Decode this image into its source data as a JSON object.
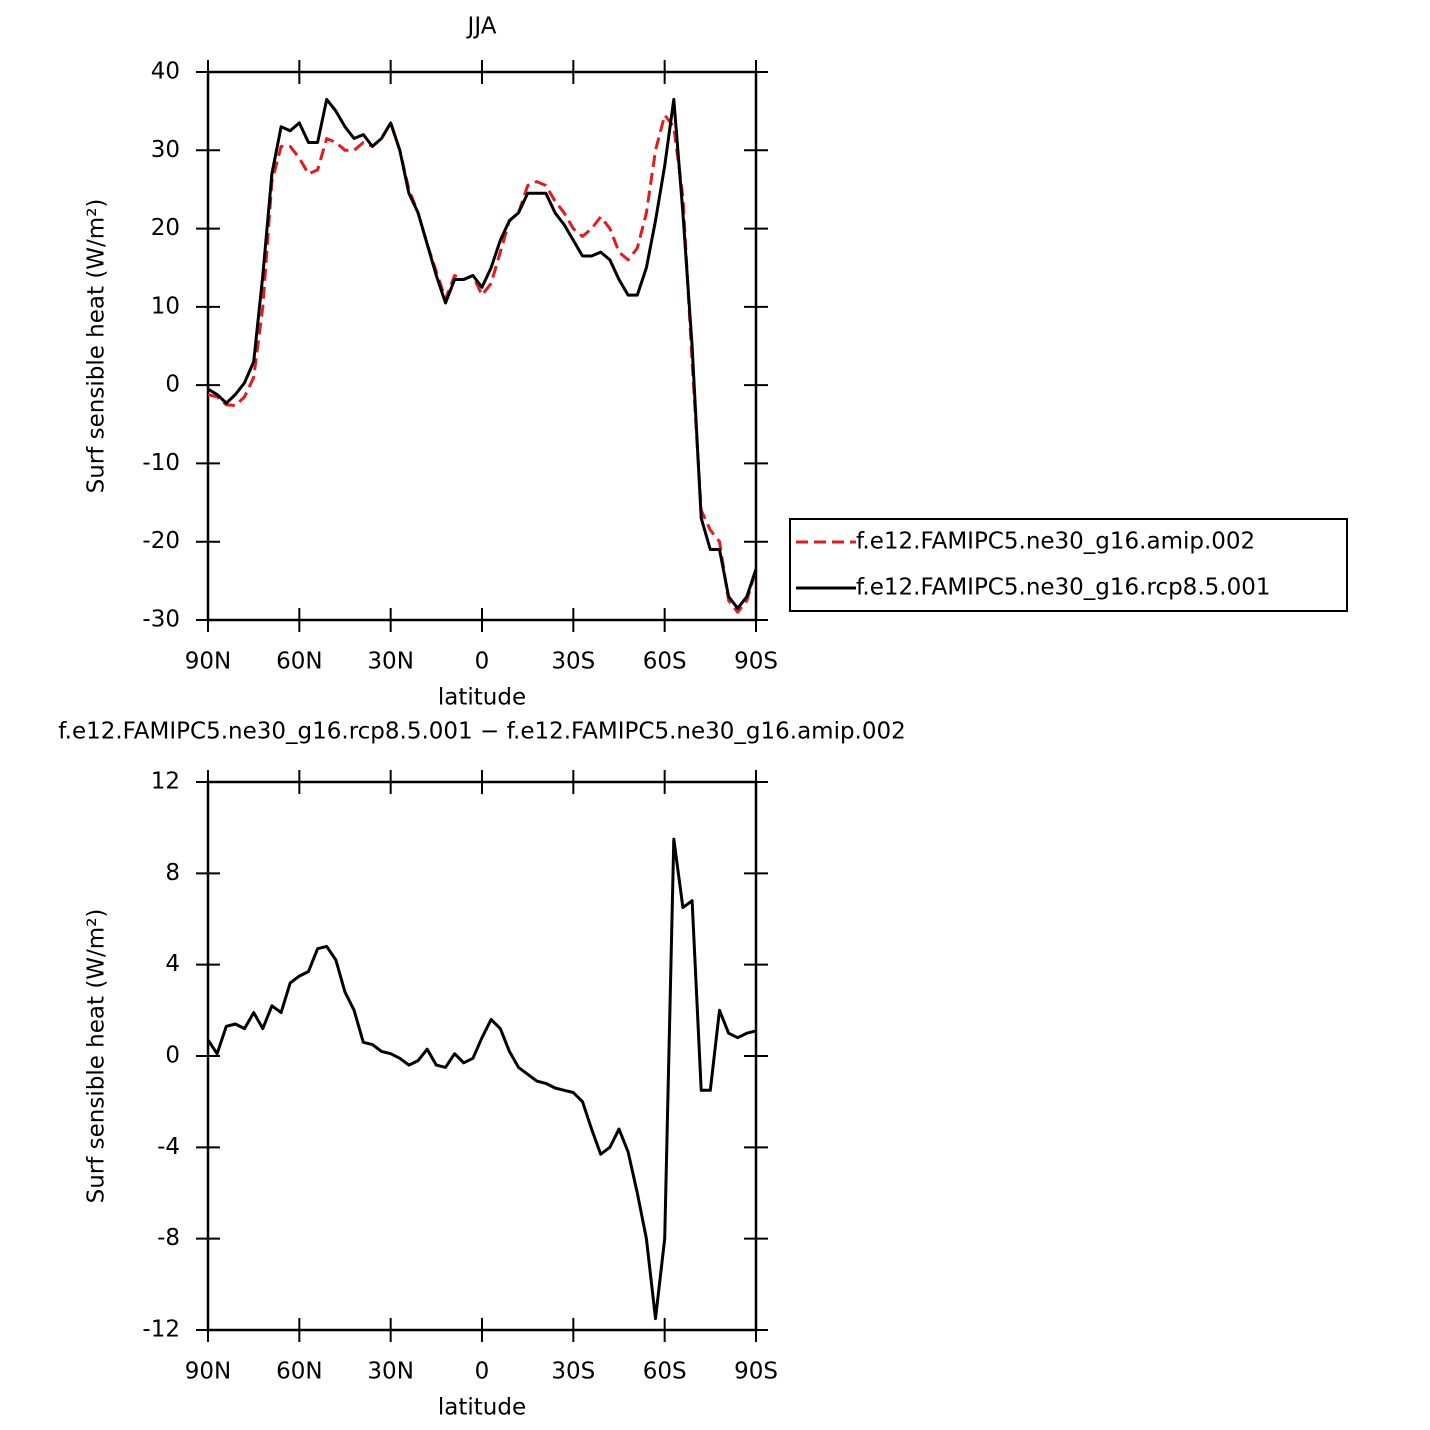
{
  "chart_data": [
    {
      "type": "line",
      "title": "JJA",
      "xlabel": "latitude",
      "ylabel": "Surf sensible heat (W/m²)",
      "x": [
        90,
        87,
        84,
        81,
        78,
        75,
        72,
        69,
        66,
        63,
        60,
        57,
        54,
        51,
        48,
        45,
        42,
        39,
        36,
        33,
        30,
        27,
        24,
        21,
        18,
        15,
        12,
        9,
        6,
        3,
        0,
        -3,
        -6,
        -9,
        -12,
        -15,
        -18,
        -21,
        -24,
        -27,
        -30,
        -33,
        -36,
        -39,
        -42,
        -45,
        -48,
        -51,
        -54,
        -57,
        -60,
        -63,
        -66,
        -69,
        -72,
        -75,
        -78,
        -81,
        -84,
        -87,
        -90
      ],
      "xlim": [
        90,
        -90
      ],
      "xticks": [
        {
          "value": 90,
          "label": "90N"
        },
        {
          "value": 60,
          "label": "60N"
        },
        {
          "value": 30,
          "label": "30N"
        },
        0,
        {
          "value": -30,
          "label": "30S"
        },
        {
          "value": -60,
          "label": "60S"
        },
        {
          "value": -90,
          "label": "90S"
        }
      ],
      "ylim": [
        -30,
        40
      ],
      "yticks": [
        -30,
        -20,
        -10,
        0,
        10,
        20,
        30,
        40
      ],
      "legend": "right",
      "series": [
        {
          "name": "f.e12.FAMIPC5.ne30_g16.amip.002",
          "color": "#e41a1c",
          "dash": true,
          "values": [
            -1.2,
            -1.5,
            -2.5,
            -2.6,
            -1.5,
            1.0,
            10,
            26,
            30.5,
            30.5,
            29,
            27,
            27.5,
            31.5,
            31,
            30,
            30,
            31,
            30.5,
            31.5,
            33.5,
            30,
            25,
            22,
            18,
            14.5,
            11,
            14,
            13.5,
            14,
            11.5,
            13,
            17,
            21,
            22,
            25.5,
            26,
            25.5,
            23.5,
            22,
            20,
            19,
            20,
            21.5,
            20,
            17,
            16,
            17.5,
            22,
            30,
            34.5,
            33,
            24,
            3,
            -16,
            -18.5,
            -20,
            -27.5,
            -29,
            -27.5,
            -23.5
          ]
        },
        {
          "name": "f.e12.FAMIPC5.ne30_g16.rcp8.5.001",
          "color": "#000000",
          "dash": false,
          "values": [
            -0.5,
            -1.2,
            -2.3,
            -1.2,
            0.3,
            3.0,
            14,
            27,
            33,
            32.5,
            33.5,
            31,
            31,
            36.5,
            35,
            33,
            31.5,
            32,
            30.5,
            31.5,
            33.5,
            30,
            24.5,
            22,
            18,
            14,
            10.5,
            13.5,
            13.5,
            14,
            12.5,
            15,
            18.5,
            21,
            22,
            24.5,
            24.5,
            24.5,
            22,
            20.5,
            18.5,
            16.5,
            16.5,
            17,
            16,
            13.5,
            11.5,
            11.5,
            15,
            21,
            28,
            36.5,
            22,
            5,
            -17,
            -21,
            -21,
            -27,
            -28.5,
            -27,
            -23.5
          ]
        }
      ]
    },
    {
      "type": "line",
      "title": "f.e12.FAMIPC5.ne30_g16.rcp8.5.001 − f.e12.FAMIPC5.ne30_g16.amip.002",
      "xlabel": "latitude",
      "ylabel": "Surf sensible heat (W/m²)",
      "x": [
        90,
        87,
        84,
        81,
        78,
        75,
        72,
        69,
        66,
        63,
        60,
        57,
        54,
        51,
        48,
        45,
        42,
        39,
        36,
        33,
        30,
        27,
        24,
        21,
        18,
        15,
        12,
        9,
        6,
        3,
        0,
        -3,
        -6,
        -9,
        -12,
        -15,
        -18,
        -21,
        -24,
        -27,
        -30,
        -33,
        -36,
        -39,
        -42,
        -45,
        -48,
        -51,
        -54,
        -57,
        -60,
        -63,
        -66,
        -69,
        -72,
        -75,
        -78,
        -81,
        -84,
        -87,
        -90
      ],
      "xlim": [
        90,
        -90
      ],
      "xticks": [
        {
          "value": 90,
          "label": "90N"
        },
        {
          "value": 60,
          "label": "60N"
        },
        {
          "value": 30,
          "label": "30N"
        },
        0,
        {
          "value": -30,
          "label": "30S"
        },
        {
          "value": -60,
          "label": "60S"
        },
        {
          "value": -90,
          "label": "90S"
        }
      ],
      "ylim": [
        -12,
        12
      ],
      "yticks": [
        -12,
        -8,
        -4,
        0,
        4,
        8,
        12
      ],
      "series": [
        {
          "color": "#000000",
          "dash": false,
          "values": [
            0.7,
            0.1,
            1.3,
            1.4,
            1.2,
            1.9,
            1.2,
            2.2,
            1.9,
            3.2,
            3.5,
            3.7,
            4.7,
            4.8,
            4.2,
            2.8,
            2.0,
            0.6,
            0.5,
            0.2,
            0.1,
            -0.1,
            -0.4,
            -0.2,
            0.3,
            -0.4,
            -0.5,
            0.1,
            -0.3,
            -0.1,
            0.8,
            1.6,
            1.2,
            0.2,
            -0.5,
            -0.8,
            -1.1,
            -1.2,
            -1.4,
            -1.5,
            -1.6,
            -2.0,
            -3.2,
            -4.3,
            -4.0,
            -3.2,
            -4.2,
            -6.0,
            -8.0,
            -11.5,
            -8.0,
            9.5,
            6.5,
            6.8,
            -1.5,
            -1.5,
            2.0,
            1.0,
            0.8,
            1.0,
            1.1
          ]
        }
      ]
    }
  ]
}
